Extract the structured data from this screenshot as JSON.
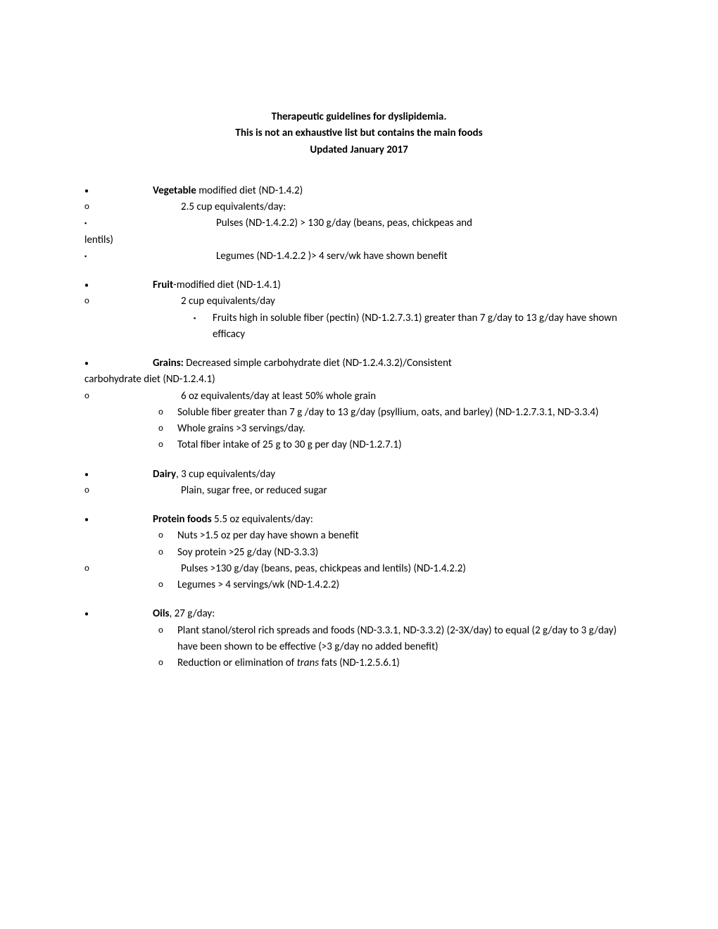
{
  "title": {
    "line1": "Therapeutic guidelines for dyslipidemia.",
    "line2": "This is not an exhaustive list but contains the main foods",
    "line3": "Updated January 2017"
  },
  "vegetable": {
    "bold": "Vegetable",
    "rest": " modified diet (ND-1.4.2)",
    "sub1": "2.5 cup equivalents/day:",
    "pulses": "Pulses (ND-1.4.2.2) > 130 g/day (beans, peas, chickpeas and",
    "pulses_cont": "lentils)",
    "legumes": "Legumes (ND-1.4.2.2 )> 4 serv/wk have shown benefit"
  },
  "fruit": {
    "bold": "Fruit",
    "rest": "-modified diet (ND-1.4.1)",
    "sub1": "2 cup equivalents/day",
    "fiber": "Fruits high in soluble fiber (pectin) (ND-1.2.7.3.1) greater than 7 g/day to 13 g/day have shown efficacy"
  },
  "grains": {
    "bold": "Grains:",
    "rest": " Decreased simple carbohydrate diet (ND-1.2.4.3.2)/Consistent",
    "cont": "carbohydrate diet (ND-1.2.4.1)",
    "sub1": "6 oz equivalents/day at least 50% whole grain",
    "soluble": "Soluble fiber greater than 7 g /day to 13 g/day (psyllium, oats, and barley) (ND-1.2.7.3.1, ND-3.3.4)",
    "whole": "Whole grains >3 servings/day.",
    "total": "Total fiber intake of 25 g to 30 g per day (ND-1.2.7.1)"
  },
  "dairy": {
    "bold": "Dairy",
    "rest": ", 3 cup equivalents/day",
    "sub1": "Plain, sugar free, or reduced sugar"
  },
  "protein": {
    "bold": "Protein foods",
    "rest": " 5.5 oz equivalents/day:",
    "nuts": "Nuts >1.5 oz per day have shown a benefit",
    "soy": "Soy protein >25 g/day (ND-3.3.3)",
    "pulses": "Pulses >130 g/day (beans, peas, chickpeas and lentils) (ND-1.4.2.2)",
    "legumes": "Legumes > 4 servings/wk (ND-1.4.2.2)"
  },
  "oils": {
    "bold": "Oils",
    "rest": ", 27 g/day:",
    "stanol": "Plant stanol/sterol rich spreads and foods (ND-3.3.1, ND-3.3.2) (2-3X/day) to equal (2 g/day to 3 g/day) have been shown to be effective (>3 g/day no added benefit)",
    "trans_pre": "Reduction or elimination of ",
    "trans_ital": "trans",
    "trans_post": " fats (ND-1.2.5.6.1)"
  },
  "bullets": {
    "disc": "•",
    "circ": "o",
    "sq": "▪"
  }
}
